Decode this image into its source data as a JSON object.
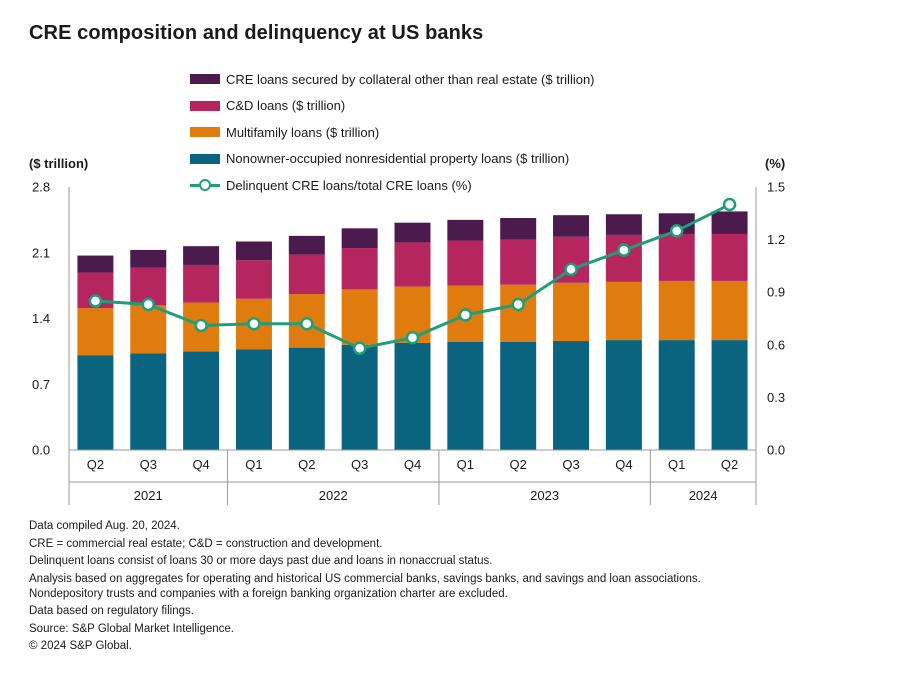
{
  "chart_data": {
    "type": "bar",
    "stacked": true,
    "title": "CRE composition and delinquency at US banks",
    "ylabel_left": "($ trillion)",
    "ylabel_right": "(%)",
    "ylim_left": [
      0,
      2.8
    ],
    "yticks_left": [
      "0.0",
      "0.7",
      "1.4",
      "2.1",
      "2.8"
    ],
    "ylim_right": [
      0,
      1.5
    ],
    "yticks_right": [
      "0.0",
      "0.3",
      "0.6",
      "0.9",
      "1.2",
      "1.5"
    ],
    "categories": [
      "Q2",
      "Q3",
      "Q4",
      "Q1",
      "Q2",
      "Q3",
      "Q4",
      "Q1",
      "Q2",
      "Q3",
      "Q4",
      "Q1",
      "Q2"
    ],
    "years": [
      {
        "label": "2021",
        "start": 0,
        "end": 2
      },
      {
        "label": "2022",
        "start": 3,
        "end": 6
      },
      {
        "label": "2023",
        "start": 7,
        "end": 10
      },
      {
        "label": "2024",
        "start": 11,
        "end": 12
      }
    ],
    "series": [
      {
        "name": "Nonowner-occupied nonresidential property loans ($ trillion)",
        "color": "#0a6480",
        "values": [
          1.01,
          1.03,
          1.05,
          1.07,
          1.09,
          1.12,
          1.14,
          1.15,
          1.15,
          1.16,
          1.17,
          1.17,
          1.17
        ]
      },
      {
        "name": "Multifamily loans ($ trillion)",
        "color": "#e07b0d",
        "values": [
          0.5,
          0.51,
          0.52,
          0.54,
          0.57,
          0.59,
          0.6,
          0.6,
          0.61,
          0.62,
          0.62,
          0.63,
          0.63
        ]
      },
      {
        "name": "C&D loans ($ trillion)",
        "color": "#b5265f",
        "values": [
          0.38,
          0.4,
          0.4,
          0.41,
          0.42,
          0.44,
          0.47,
          0.48,
          0.48,
          0.49,
          0.5,
          0.5,
          0.5
        ]
      },
      {
        "name": "CRE loans secured by collateral other than real estate ($ trillion)",
        "color": "#4a1b4c",
        "values": [
          0.18,
          0.19,
          0.2,
          0.2,
          0.2,
          0.21,
          0.21,
          0.22,
          0.23,
          0.23,
          0.22,
          0.22,
          0.24
        ]
      }
    ],
    "line": {
      "name": "Delinquent CRE loans/total CRE loans (%)",
      "color": "#1e9e7a",
      "axis": "right",
      "values": [
        0.85,
        0.83,
        0.71,
        0.72,
        0.72,
        0.58,
        0.64,
        0.77,
        0.83,
        1.03,
        1.14,
        1.25,
        1.4
      ]
    },
    "legend_order": [
      3,
      2,
      1,
      0,
      "line"
    ]
  },
  "notes": [
    "Data compiled Aug. 20, 2024.",
    "CRE = commercial real estate; C&D = construction and development.",
    "Delinquent loans consist of loans 30 or more days past due and loans in nonaccrual status.",
    "Analysis based on aggregates for operating and historical US commercial banks, savings banks, and savings and loan associations. Nondepository trusts and companies with a foreign banking organization charter are excluded.",
    "Data based on regulatory filings.",
    "Source: S&P Global Market Intelligence.",
    "© 2024 S&P Global."
  ]
}
